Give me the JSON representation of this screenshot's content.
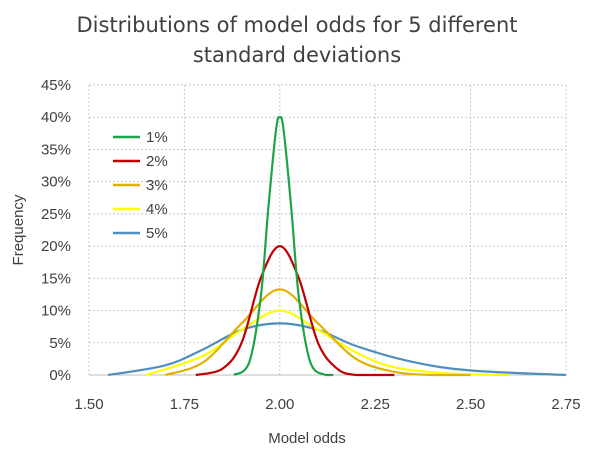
{
  "chart_data": {
    "type": "line",
    "title_lines": [
      "Distributions of model odds for 5 different",
      "standard deviations"
    ],
    "xlabel": "Model odds",
    "ylabel": "Frequency",
    "xlim": [
      1.5,
      2.75
    ],
    "ylim": [
      0,
      0.45
    ],
    "x_ticks": [
      1.5,
      1.75,
      2.0,
      2.25,
      2.5,
      2.75
    ],
    "x_tick_labels": [
      "1.50",
      "1.75",
      "2.00",
      "2.25",
      "2.50",
      "2.75"
    ],
    "y_ticks": [
      0,
      0.05,
      0.1,
      0.15,
      0.2,
      0.25,
      0.3,
      0.35,
      0.4,
      0.45
    ],
    "y_tick_labels": [
      "0%",
      "5%",
      "10%",
      "15%",
      "20%",
      "25%",
      "30%",
      "35%",
      "40%",
      "45%"
    ],
    "grid": "dotted, both axes",
    "legend_position": "top-left",
    "series": [
      {
        "name": "1%",
        "color": "#1fa347",
        "peak_x": 2.0,
        "peak_y": 0.4,
        "x": [
          1.88,
          1.92,
          1.95,
          1.97,
          1.99,
          2.0,
          2.01,
          2.03,
          2.05,
          2.08,
          2.12,
          2.14
        ],
        "y": [
          0.0,
          0.02,
          0.12,
          0.26,
          0.38,
          0.4,
          0.38,
          0.26,
          0.12,
          0.02,
          0.0,
          0.0
        ]
      },
      {
        "name": "2%",
        "color": "#c00000",
        "peak_x": 2.0,
        "peak_y": 0.2,
        "x": [
          1.78,
          1.85,
          1.9,
          1.95,
          2.0,
          2.05,
          2.1,
          2.15,
          2.2,
          2.3
        ],
        "y": [
          0.0,
          0.01,
          0.05,
          0.15,
          0.2,
          0.15,
          0.05,
          0.01,
          0.0,
          0.0
        ]
      },
      {
        "name": "3%",
        "color": "#e3b000",
        "peak_x": 2.0,
        "peak_y": 0.133,
        "x": [
          1.7,
          1.8,
          1.9,
          2.0,
          2.1,
          2.2,
          2.3,
          2.4,
          2.5
        ],
        "y": [
          0.0,
          0.02,
          0.08,
          0.133,
          0.08,
          0.025,
          0.005,
          0.0,
          0.0
        ]
      },
      {
        "name": "4%",
        "color": "#ffff00",
        "peak_x": 2.0,
        "peak_y": 0.1,
        "x": [
          1.65,
          1.8,
          1.9,
          2.0,
          2.1,
          2.2,
          2.3,
          2.45,
          2.6
        ],
        "y": [
          0.0,
          0.03,
          0.07,
          0.1,
          0.07,
          0.035,
          0.012,
          0.002,
          0.0
        ]
      },
      {
        "name": "5%",
        "color": "#4e8fbf",
        "peak_x": 2.0,
        "peak_y": 0.08,
        "x": [
          1.55,
          1.7,
          1.8,
          1.9,
          2.0,
          2.1,
          2.2,
          2.35,
          2.5,
          2.75
        ],
        "y": [
          0.0,
          0.015,
          0.04,
          0.07,
          0.08,
          0.07,
          0.045,
          0.02,
          0.007,
          0.0
        ]
      }
    ]
  }
}
